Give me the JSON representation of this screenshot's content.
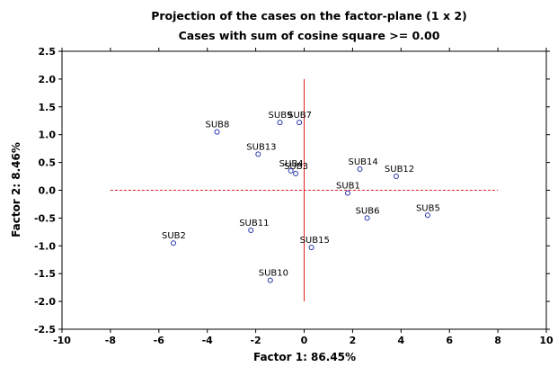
{
  "chart_data": {
    "type": "scatter",
    "title": "Projection of the cases on the factor-plane (1 x 2)",
    "subtitle": "Cases with sum of cosine square >= 0.00",
    "xlabel": "Factor 1: 86.45%",
    "ylabel": "Factor 2: 8.46%",
    "xlim": [
      -10,
      10
    ],
    "ylim": [
      -2.5,
      2.5
    ],
    "xticks": [
      -10,
      -8,
      -6,
      -4,
      -2,
      0,
      2,
      4,
      6,
      8,
      10
    ],
    "yticks": [
      2.5,
      2.0,
      1.5,
      1.0,
      0.5,
      0.0,
      -0.5,
      -1.0,
      -1.5,
      -2.0,
      -2.5
    ],
    "xtick_labels": [
      "-10",
      "-8",
      "-6",
      "-4",
      "-2",
      "0",
      "2",
      "4",
      "6",
      "8",
      "10"
    ],
    "ytick_labels": [
      "2.5",
      "2.0",
      "1.5",
      "1.0",
      "0.5",
      "0.0",
      "-0.5",
      "-1.0",
      "-1.5",
      "-2.0",
      "-2.5"
    ],
    "grid": false,
    "reference_lines": [
      {
        "orientation": "horizontal",
        "value": 0.0,
        "from": -8,
        "to": 8,
        "color": "#e02020",
        "dashed": true
      },
      {
        "orientation": "vertical",
        "value": 0.0,
        "from": -2.0,
        "to": 2.0,
        "color": "#e02020",
        "dashed": false
      }
    ],
    "marker_color": "#2233aa",
    "points": [
      {
        "label": "SUB1",
        "x": 1.8,
        "y": -0.05
      },
      {
        "label": "SUB2",
        "x": -5.4,
        "y": -0.95
      },
      {
        "label": "SUB3",
        "x": -0.35,
        "y": 0.3
      },
      {
        "label": "SUB4",
        "x": -0.55,
        "y": 0.35
      },
      {
        "label": "SUB5",
        "x": 5.1,
        "y": -0.45
      },
      {
        "label": "SUB6",
        "x": 2.6,
        "y": -0.5
      },
      {
        "label": "SUB7",
        "x": -0.2,
        "y": 1.22
      },
      {
        "label": "SUB8",
        "x": -3.6,
        "y": 1.05
      },
      {
        "label": "SUB9",
        "x": -1.0,
        "y": 1.22
      },
      {
        "label": "SUB10",
        "x": -1.4,
        "y": -1.62
      },
      {
        "label": "SUB11",
        "x": -2.2,
        "y": -0.72
      },
      {
        "label": "SUB12",
        "x": 3.8,
        "y": 0.25
      },
      {
        "label": "SUB13",
        "x": -1.9,
        "y": 0.65
      },
      {
        "label": "SUB14",
        "x": 2.3,
        "y": 0.38
      },
      {
        "label": "SUB15",
        "x": 0.3,
        "y": -1.03
      }
    ]
  }
}
